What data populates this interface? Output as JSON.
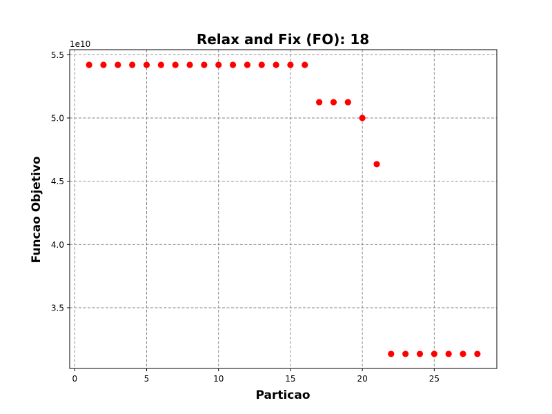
{
  "chart_data": {
    "type": "scatter",
    "title": "Relax and Fix (FO): 18",
    "xlabel": "Particao",
    "ylabel": "Funcao Objetivo",
    "y_offset_label": "1e10",
    "xlim": [
      -0.35,
      29.35
    ],
    "ylim": [
      3.02,
      5.54
    ],
    "xticks": [
      0,
      5,
      10,
      15,
      20,
      25
    ],
    "yticks": [
      3.5,
      4.0,
      4.5,
      5.0,
      5.5
    ],
    "ytick_labels": [
      "3.5",
      "4.0",
      "4.5",
      "5.0",
      "5.5"
    ],
    "grid": true,
    "marker_color": "#ff0000",
    "series": [
      {
        "x": [
          1,
          2,
          3,
          4,
          5,
          6,
          7,
          8,
          9,
          10,
          11,
          12,
          13,
          14,
          15,
          16,
          17,
          18,
          19,
          20,
          21,
          22,
          23,
          24,
          25,
          26,
          27,
          28
        ],
        "y": [
          5.42,
          5.42,
          5.42,
          5.42,
          5.42,
          5.42,
          5.42,
          5.42,
          5.42,
          5.42,
          5.42,
          5.42,
          5.42,
          5.42,
          5.42,
          5.42,
          5.125,
          5.125,
          5.125,
          5.0,
          4.635,
          3.135,
          3.135,
          3.135,
          3.135,
          3.135,
          3.135,
          3.135
        ]
      }
    ]
  }
}
